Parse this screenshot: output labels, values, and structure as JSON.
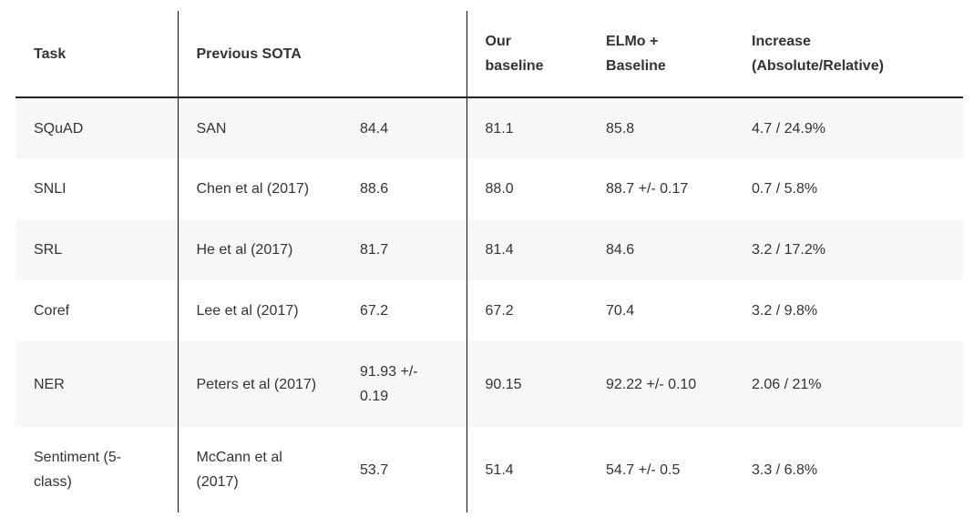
{
  "headers": {
    "task": "Task",
    "previous_sota": "Previous SOTA",
    "our_baseline": "Our\nbaseline",
    "elmo_baseline": "ELMo +\nBaseline",
    "increase": "Increase\n(Absolute/Relative)"
  },
  "rows": [
    {
      "task": "SQuAD",
      "prev_model": "SAN",
      "prev_score": "84.4",
      "our_baseline": "81.1",
      "elmo_baseline": "85.8",
      "increase": "4.7 / 24.9%"
    },
    {
      "task": "SNLI",
      "prev_model": "Chen et al (2017)",
      "prev_score": "88.6",
      "our_baseline": "88.0",
      "elmo_baseline": "88.7 +/- 0.17",
      "increase": "0.7 / 5.8%"
    },
    {
      "task": "SRL",
      "prev_model": "He et al (2017)",
      "prev_score": "81.7",
      "our_baseline": "81.4",
      "elmo_baseline": "84.6",
      "increase": "3.2 / 17.2%"
    },
    {
      "task": "Coref",
      "prev_model": "Lee et al (2017)",
      "prev_score": "67.2",
      "our_baseline": "67.2",
      "elmo_baseline": "70.4",
      "increase": "3.2 / 9.8%"
    },
    {
      "task": "NER",
      "prev_model": "Peters et al (2017)",
      "prev_score": "91.93 +/-\n0.19",
      "our_baseline": "90.15",
      "elmo_baseline": "92.22 +/- 0.10",
      "increase": "2.06 / 21%"
    },
    {
      "task": "Sentiment (5-\nclass)",
      "prev_model": "McCann et al\n(2017)",
      "prev_score": "53.7",
      "our_baseline": "51.4",
      "elmo_baseline": "54.7 +/- 0.5",
      "increase": "3.3 / 6.8%"
    }
  ]
}
